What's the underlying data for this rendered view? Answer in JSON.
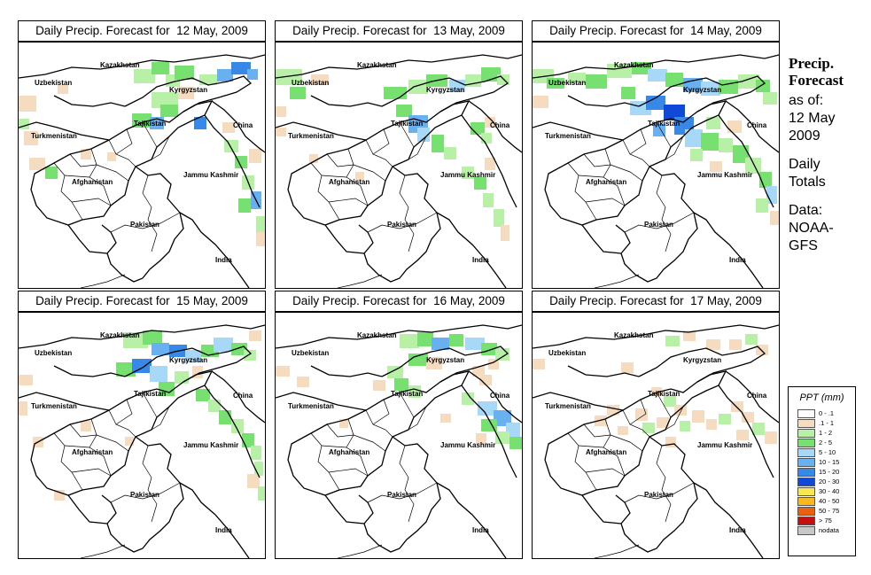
{
  "panels": [
    {
      "title": "Daily Precip. Forecast for  12 May, 2009",
      "precip": "p12"
    },
    {
      "title": "Daily Precip. Forecast for  13 May, 2009",
      "precip": "p13"
    },
    {
      "title": "Daily Precip. Forecast for  14 May, 2009",
      "precip": "p14"
    },
    {
      "title": "Daily Precip. Forecast for  15 May, 2009",
      "precip": "p15"
    },
    {
      "title": "Daily Precip. Forecast for  16 May, 2009",
      "precip": "p16"
    },
    {
      "title": "Daily Precip. Forecast for  17 May, 2009",
      "precip": "p17"
    }
  ],
  "map_labels": {
    "kazakhstan": "Kazakhstan",
    "uzbekistan": "Uzbekistan",
    "kyrgyzstan": "Kyrgyzstan",
    "tajikistan": "Tajikistan",
    "turkmenistan": "Turkmenistan",
    "china": "China",
    "jammu_kashmir": "Jammu Kashmir",
    "afghanistan": "Afghanistan",
    "pakistan": "Pakistan",
    "india": "India"
  },
  "sidebar": {
    "heading_line1": "Precip.",
    "heading_line2": "Forecast",
    "as_of": "as of:",
    "date_line1": "12 May",
    "date_line2": "2009",
    "totals_line1": "Daily",
    "totals_line2": "Totals",
    "data_line1": "Data:",
    "data_line2": "NOAA-",
    "data_line3": "GFS"
  },
  "legend": {
    "title": "PPT (mm)",
    "items": [
      {
        "label": "0 - .1",
        "color": "#ffffff"
      },
      {
        "label": ".1 - 1",
        "color": "#f5dcc0"
      },
      {
        "label": "1 - 2",
        "color": "#b8f0a8"
      },
      {
        "label": "2 - 5",
        "color": "#78e070"
      },
      {
        "label": "5 - 10",
        "color": "#a8d8f8"
      },
      {
        "label": "10 - 15",
        "color": "#68b0f0"
      },
      {
        "label": "15 - 20",
        "color": "#3888e8"
      },
      {
        "label": "20 - 30",
        "color": "#1048d8"
      },
      {
        "label": "30 - 40",
        "color": "#f8e850"
      },
      {
        "label": "40 - 50",
        "color": "#f8b820"
      },
      {
        "label": "50 - 75",
        "color": "#e86010"
      },
      {
        "label": "> 75",
        "color": "#c01010"
      },
      {
        "label": "nodata",
        "color": "#c8c8c8"
      }
    ]
  }
}
